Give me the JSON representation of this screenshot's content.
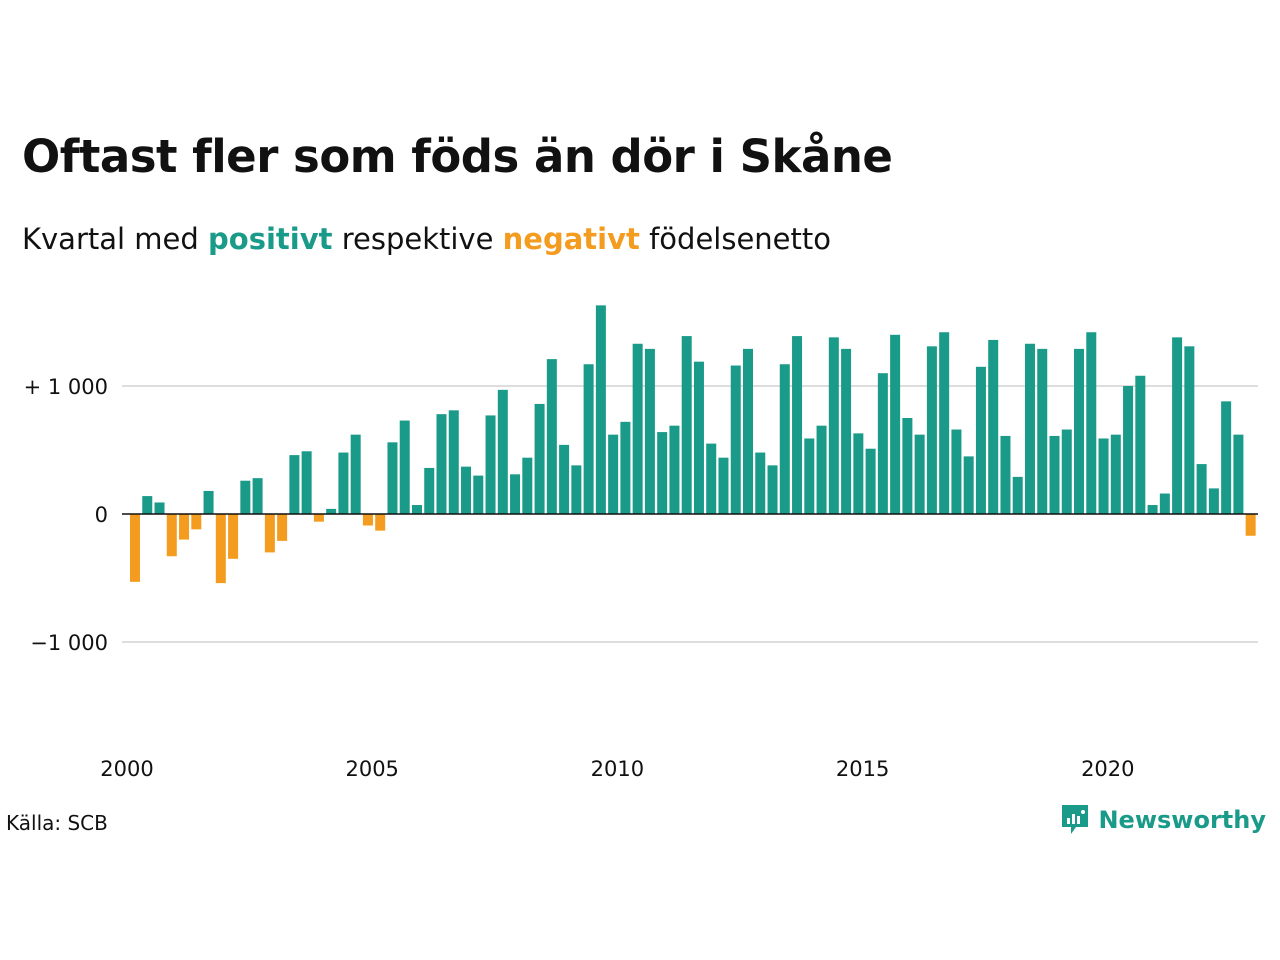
{
  "title": "Oftast fler som föds än dör i Skåne",
  "subtitle": {
    "prefix": "Kvartal med ",
    "positive": "positivt",
    "middle": " respektive ",
    "negative": "negativt",
    "suffix": " födelsenetto"
  },
  "source": "Källa: SCB",
  "brand": "Newsworthy",
  "colors": {
    "positive": "#1a9a88",
    "negative": "#f39c1f",
    "grid": "#dddddd",
    "axis": "#111111"
  },
  "chart_data": {
    "type": "bar",
    "x_start": "2000 Q1",
    "x_step": "quarter",
    "ylim": [
      -1700,
      1700
    ],
    "yticks": [
      -1000,
      0,
      1000
    ],
    "ytick_labels": [
      "−1 000",
      "0",
      "+ 1 000"
    ],
    "xtick_labels": [
      "2000",
      "2005",
      "2010",
      "2015",
      "2020"
    ],
    "grid": true,
    "values": [
      -530,
      140,
      90,
      -330,
      -200,
      -120,
      180,
      -540,
      -350,
      260,
      280,
      -300,
      -210,
      460,
      490,
      -60,
      40,
      480,
      620,
      -90,
      -130,
      560,
      730,
      70,
      360,
      780,
      810,
      370,
      300,
      770,
      970,
      310,
      440,
      860,
      1210,
      540,
      380,
      1170,
      1630,
      620,
      720,
      1330,
      1290,
      640,
      690,
      1390,
      1190,
      550,
      440,
      1160,
      1290,
      480,
      380,
      1170,
      1390,
      590,
      690,
      1380,
      1290,
      630,
      510,
      1100,
      1400,
      750,
      620,
      1310,
      1420,
      660,
      450,
      1150,
      1360,
      610,
      290,
      1330,
      1290,
      610,
      660,
      1290,
      1420,
      590,
      620,
      1000,
      1080,
      70,
      160,
      1380,
      1310,
      390,
      200,
      880,
      620,
      -170
    ]
  }
}
